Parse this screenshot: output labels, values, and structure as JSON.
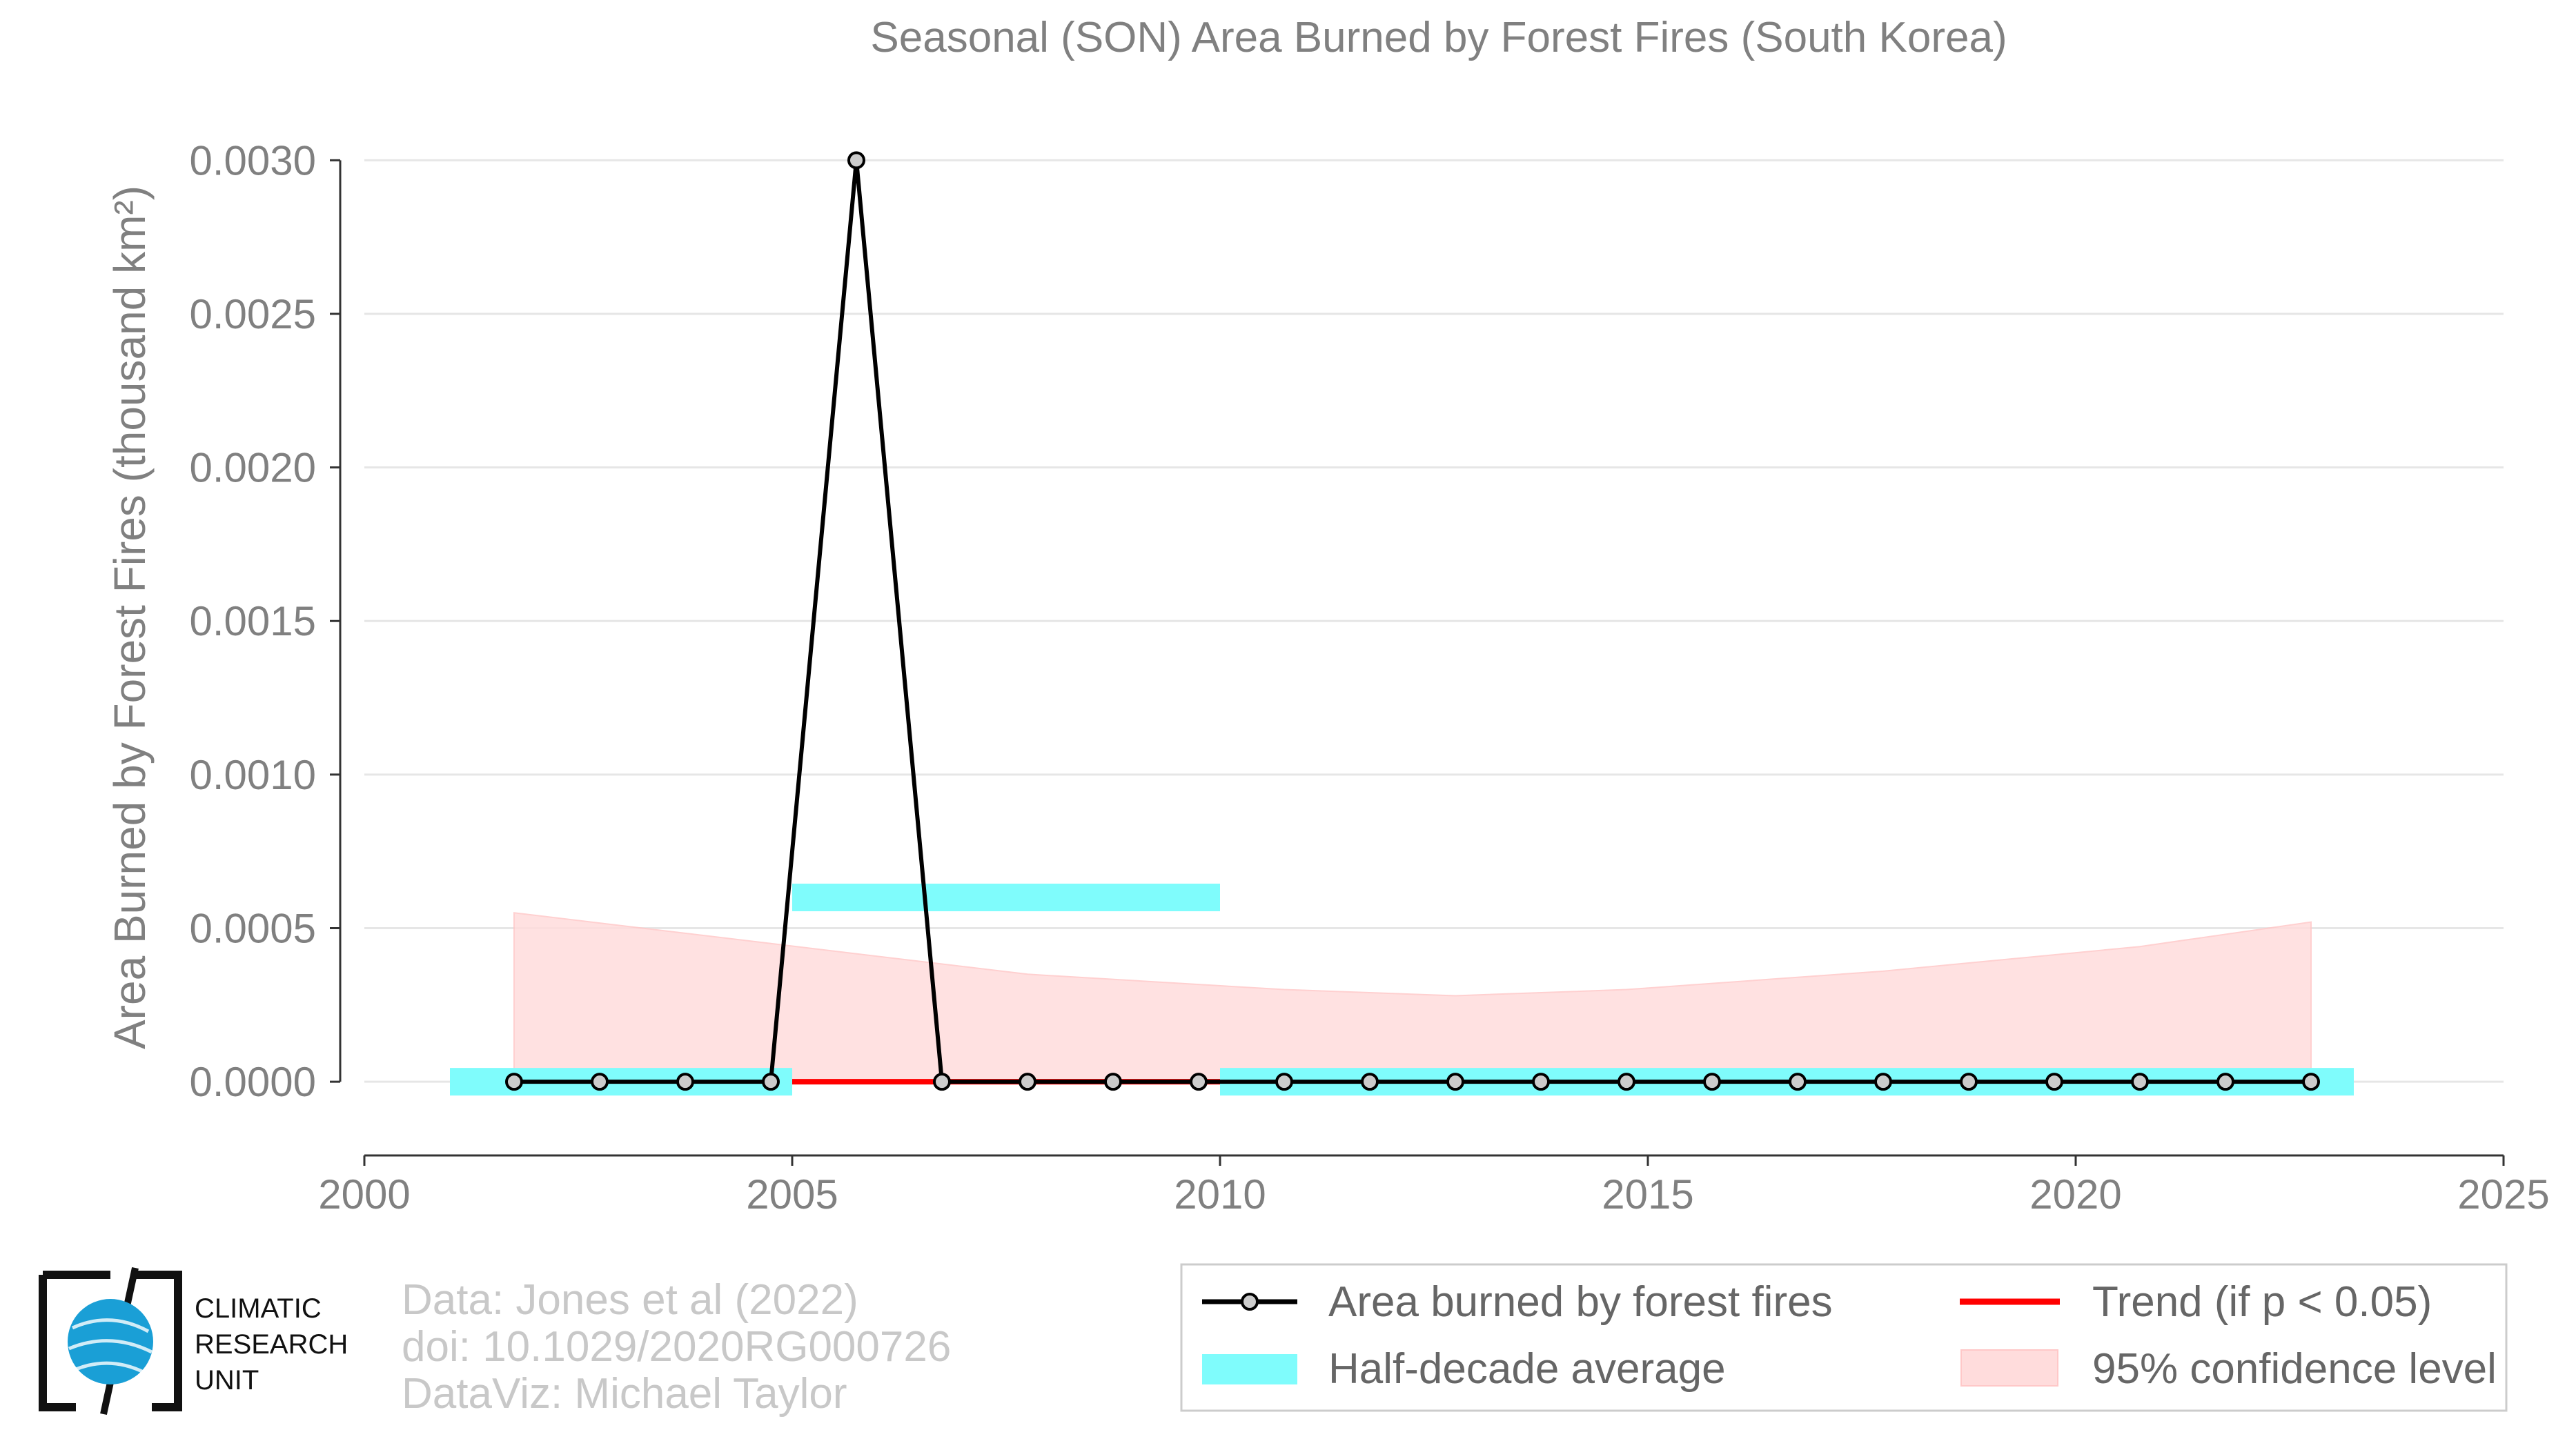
{
  "chart_data": {
    "type": "line",
    "title": "Seasonal (SON) Area Burned by Forest Fires (South Korea)",
    "ylabel": "Area Burned by Forest Fires (thousand km²)",
    "xlabel": "",
    "xlim": [
      2000,
      2025
    ],
    "ylim": [
      -0.00024,
      0.00314
    ],
    "x_ticks": [
      "2000",
      "2005",
      "2010",
      "2015",
      "2020",
      "2025"
    ],
    "y_ticks": [
      "0.0000",
      "0.0005",
      "0.0010",
      "0.0015",
      "0.0020",
      "0.0025",
      "0.0030"
    ],
    "grid": "horizontal",
    "legend_position": "bottom-right",
    "series": [
      {
        "name": "Area burned by forest fires",
        "color": "#000000",
        "x": [
          2001.75,
          2002.75,
          2003.75,
          2004.75,
          2005.75,
          2006.75,
          2007.75,
          2008.75,
          2009.75,
          2010.75,
          2011.75,
          2012.75,
          2013.75,
          2014.75,
          2015.75,
          2016.75,
          2017.75,
          2018.75,
          2019.75,
          2020.75,
          2021.75,
          2022.75
        ],
        "y": [
          0,
          0,
          0,
          0,
          0.003,
          0,
          0,
          0,
          0,
          0,
          0,
          0,
          0,
          0,
          0,
          0,
          0,
          0,
          0,
          0,
          0,
          0
        ]
      }
    ],
    "half_decade_average": {
      "name": "Half-decade average",
      "color": "#7ffcfc",
      "segments": [
        {
          "x0": 2001.0,
          "x1": 2005.0,
          "y": 0.0
        },
        {
          "x0": 2005.0,
          "x1": 2010.0,
          "y": 0.0006
        },
        {
          "x0": 2010.0,
          "x1": 2023.25,
          "y": 0.0
        }
      ]
    },
    "trend": {
      "name": "Trend (if p < 0.05)",
      "color": "#ff0000",
      "x": [
        2005.0,
        2010.0
      ],
      "y": [
        0.0,
        0.0
      ]
    },
    "confidence_band": {
      "name": "95% confidence level",
      "color": "#ffdcdc",
      "x": [
        2001.75,
        2004.75,
        2007.75,
        2010.75,
        2012.75,
        2014.75,
        2017.75,
        2020.75,
        2022.75
      ],
      "upper": [
        0.00055,
        0.00045,
        0.00035,
        0.0003,
        0.00028,
        0.0003,
        0.00036,
        0.00044,
        0.00052
      ],
      "lower": [
        0,
        0,
        0,
        0,
        0,
        0,
        0,
        0,
        0
      ]
    }
  },
  "legend": {
    "items": [
      {
        "key": "line",
        "label": "Area burned by forest fires"
      },
      {
        "key": "trend",
        "label": "Trend (if p < 0.05)"
      },
      {
        "key": "avg",
        "label": "Half-decade average"
      },
      {
        "key": "ci",
        "label": "95% confidence level"
      }
    ]
  },
  "credits": {
    "line1": "Data: Jones et al (2022)",
    "line2": "doi: 10.1029/2020RG000726",
    "line3": "DataViz: Michael Taylor"
  },
  "logo": {
    "line1": "CLIMATIC",
    "line2": "RESEARCH",
    "line3": "UNIT"
  }
}
